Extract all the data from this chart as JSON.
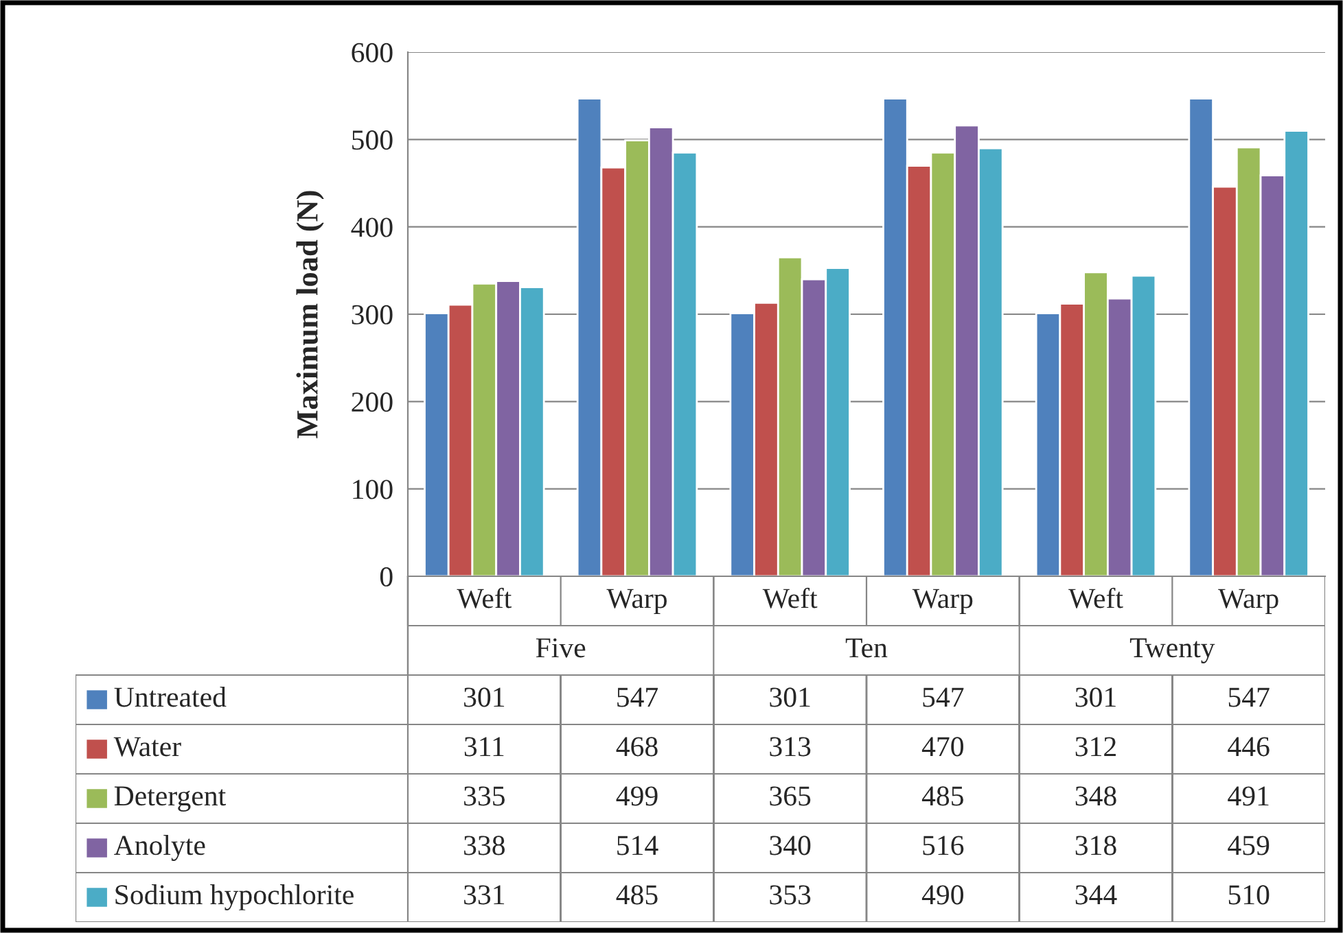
{
  "chart_data": {
    "type": "bar",
    "ylabel": "Maximum load (N)",
    "categories": [
      "Weft",
      "Warp",
      "Weft",
      "Warp",
      "Weft",
      "Warp"
    ],
    "annotations": [
      "Five",
      "Ten",
      "Twenty"
    ],
    "series": [
      {
        "name": "Untreated",
        "color": "#4f81bd",
        "values": [
          301,
          547,
          301,
          547,
          301,
          547
        ]
      },
      {
        "name": "Water",
        "color": "#c0504d",
        "values": [
          311,
          468,
          313,
          470,
          312,
          446
        ]
      },
      {
        "name": "Detergent",
        "color": "#9bbb59",
        "values": [
          335,
          499,
          365,
          485,
          348,
          491
        ]
      },
      {
        "name": "Anolyte",
        "color": "#8064a2",
        "values": [
          338,
          514,
          340,
          516,
          318,
          459
        ]
      },
      {
        "name": "Sodium hypochlorite",
        "color": "#4bacc6",
        "values": [
          331,
          485,
          353,
          490,
          344,
          510
        ]
      }
    ],
    "ylim": [
      0,
      600
    ],
    "yticks": [
      0,
      100,
      200,
      300,
      400,
      500,
      600
    ],
    "grid": "y",
    "legend": "bottom",
    "data_labels": true
  }
}
